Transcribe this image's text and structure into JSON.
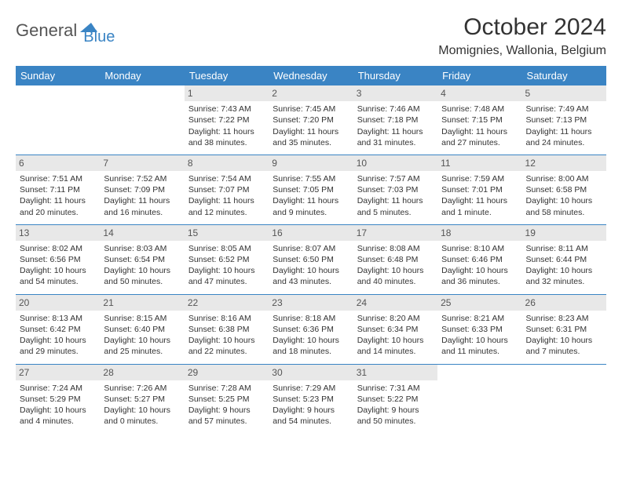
{
  "logo": {
    "part1": "General",
    "part2": "Blue"
  },
  "title": "October 2024",
  "location": "Momignies, Wallonia, Belgium",
  "colors": {
    "header_bg": "#3a84c4",
    "header_text": "#ffffff",
    "daynum_bg": "#e8e8e8",
    "body_text": "#333333",
    "logo_blue": "#3a84c4",
    "page_bg": "#ffffff",
    "separator": "#3a84c4"
  },
  "weekdays": [
    "Sunday",
    "Monday",
    "Tuesday",
    "Wednesday",
    "Thursday",
    "Friday",
    "Saturday"
  ],
  "weeks": [
    [
      null,
      null,
      {
        "n": "1",
        "sr": "Sunrise: 7:43 AM",
        "ss": "Sunset: 7:22 PM",
        "d1": "Daylight: 11 hours",
        "d2": "and 38 minutes."
      },
      {
        "n": "2",
        "sr": "Sunrise: 7:45 AM",
        "ss": "Sunset: 7:20 PM",
        "d1": "Daylight: 11 hours",
        "d2": "and 35 minutes."
      },
      {
        "n": "3",
        "sr": "Sunrise: 7:46 AM",
        "ss": "Sunset: 7:18 PM",
        "d1": "Daylight: 11 hours",
        "d2": "and 31 minutes."
      },
      {
        "n": "4",
        "sr": "Sunrise: 7:48 AM",
        "ss": "Sunset: 7:15 PM",
        "d1": "Daylight: 11 hours",
        "d2": "and 27 minutes."
      },
      {
        "n": "5",
        "sr": "Sunrise: 7:49 AM",
        "ss": "Sunset: 7:13 PM",
        "d1": "Daylight: 11 hours",
        "d2": "and 24 minutes."
      }
    ],
    [
      {
        "n": "6",
        "sr": "Sunrise: 7:51 AM",
        "ss": "Sunset: 7:11 PM",
        "d1": "Daylight: 11 hours",
        "d2": "and 20 minutes."
      },
      {
        "n": "7",
        "sr": "Sunrise: 7:52 AM",
        "ss": "Sunset: 7:09 PM",
        "d1": "Daylight: 11 hours",
        "d2": "and 16 minutes."
      },
      {
        "n": "8",
        "sr": "Sunrise: 7:54 AM",
        "ss": "Sunset: 7:07 PM",
        "d1": "Daylight: 11 hours",
        "d2": "and 12 minutes."
      },
      {
        "n": "9",
        "sr": "Sunrise: 7:55 AM",
        "ss": "Sunset: 7:05 PM",
        "d1": "Daylight: 11 hours",
        "d2": "and 9 minutes."
      },
      {
        "n": "10",
        "sr": "Sunrise: 7:57 AM",
        "ss": "Sunset: 7:03 PM",
        "d1": "Daylight: 11 hours",
        "d2": "and 5 minutes."
      },
      {
        "n": "11",
        "sr": "Sunrise: 7:59 AM",
        "ss": "Sunset: 7:01 PM",
        "d1": "Daylight: 11 hours",
        "d2": "and 1 minute."
      },
      {
        "n": "12",
        "sr": "Sunrise: 8:00 AM",
        "ss": "Sunset: 6:58 PM",
        "d1": "Daylight: 10 hours",
        "d2": "and 58 minutes."
      }
    ],
    [
      {
        "n": "13",
        "sr": "Sunrise: 8:02 AM",
        "ss": "Sunset: 6:56 PM",
        "d1": "Daylight: 10 hours",
        "d2": "and 54 minutes."
      },
      {
        "n": "14",
        "sr": "Sunrise: 8:03 AM",
        "ss": "Sunset: 6:54 PM",
        "d1": "Daylight: 10 hours",
        "d2": "and 50 minutes."
      },
      {
        "n": "15",
        "sr": "Sunrise: 8:05 AM",
        "ss": "Sunset: 6:52 PM",
        "d1": "Daylight: 10 hours",
        "d2": "and 47 minutes."
      },
      {
        "n": "16",
        "sr": "Sunrise: 8:07 AM",
        "ss": "Sunset: 6:50 PM",
        "d1": "Daylight: 10 hours",
        "d2": "and 43 minutes."
      },
      {
        "n": "17",
        "sr": "Sunrise: 8:08 AM",
        "ss": "Sunset: 6:48 PM",
        "d1": "Daylight: 10 hours",
        "d2": "and 40 minutes."
      },
      {
        "n": "18",
        "sr": "Sunrise: 8:10 AM",
        "ss": "Sunset: 6:46 PM",
        "d1": "Daylight: 10 hours",
        "d2": "and 36 minutes."
      },
      {
        "n": "19",
        "sr": "Sunrise: 8:11 AM",
        "ss": "Sunset: 6:44 PM",
        "d1": "Daylight: 10 hours",
        "d2": "and 32 minutes."
      }
    ],
    [
      {
        "n": "20",
        "sr": "Sunrise: 8:13 AM",
        "ss": "Sunset: 6:42 PM",
        "d1": "Daylight: 10 hours",
        "d2": "and 29 minutes."
      },
      {
        "n": "21",
        "sr": "Sunrise: 8:15 AM",
        "ss": "Sunset: 6:40 PM",
        "d1": "Daylight: 10 hours",
        "d2": "and 25 minutes."
      },
      {
        "n": "22",
        "sr": "Sunrise: 8:16 AM",
        "ss": "Sunset: 6:38 PM",
        "d1": "Daylight: 10 hours",
        "d2": "and 22 minutes."
      },
      {
        "n": "23",
        "sr": "Sunrise: 8:18 AM",
        "ss": "Sunset: 6:36 PM",
        "d1": "Daylight: 10 hours",
        "d2": "and 18 minutes."
      },
      {
        "n": "24",
        "sr": "Sunrise: 8:20 AM",
        "ss": "Sunset: 6:34 PM",
        "d1": "Daylight: 10 hours",
        "d2": "and 14 minutes."
      },
      {
        "n": "25",
        "sr": "Sunrise: 8:21 AM",
        "ss": "Sunset: 6:33 PM",
        "d1": "Daylight: 10 hours",
        "d2": "and 11 minutes."
      },
      {
        "n": "26",
        "sr": "Sunrise: 8:23 AM",
        "ss": "Sunset: 6:31 PM",
        "d1": "Daylight: 10 hours",
        "d2": "and 7 minutes."
      }
    ],
    [
      {
        "n": "27",
        "sr": "Sunrise: 7:24 AM",
        "ss": "Sunset: 5:29 PM",
        "d1": "Daylight: 10 hours",
        "d2": "and 4 minutes."
      },
      {
        "n": "28",
        "sr": "Sunrise: 7:26 AM",
        "ss": "Sunset: 5:27 PM",
        "d1": "Daylight: 10 hours",
        "d2": "and 0 minutes."
      },
      {
        "n": "29",
        "sr": "Sunrise: 7:28 AM",
        "ss": "Sunset: 5:25 PM",
        "d1": "Daylight: 9 hours",
        "d2": "and 57 minutes."
      },
      {
        "n": "30",
        "sr": "Sunrise: 7:29 AM",
        "ss": "Sunset: 5:23 PM",
        "d1": "Daylight: 9 hours",
        "d2": "and 54 minutes."
      },
      {
        "n": "31",
        "sr": "Sunrise: 7:31 AM",
        "ss": "Sunset: 5:22 PM",
        "d1": "Daylight: 9 hours",
        "d2": "and 50 minutes."
      },
      null,
      null
    ]
  ]
}
